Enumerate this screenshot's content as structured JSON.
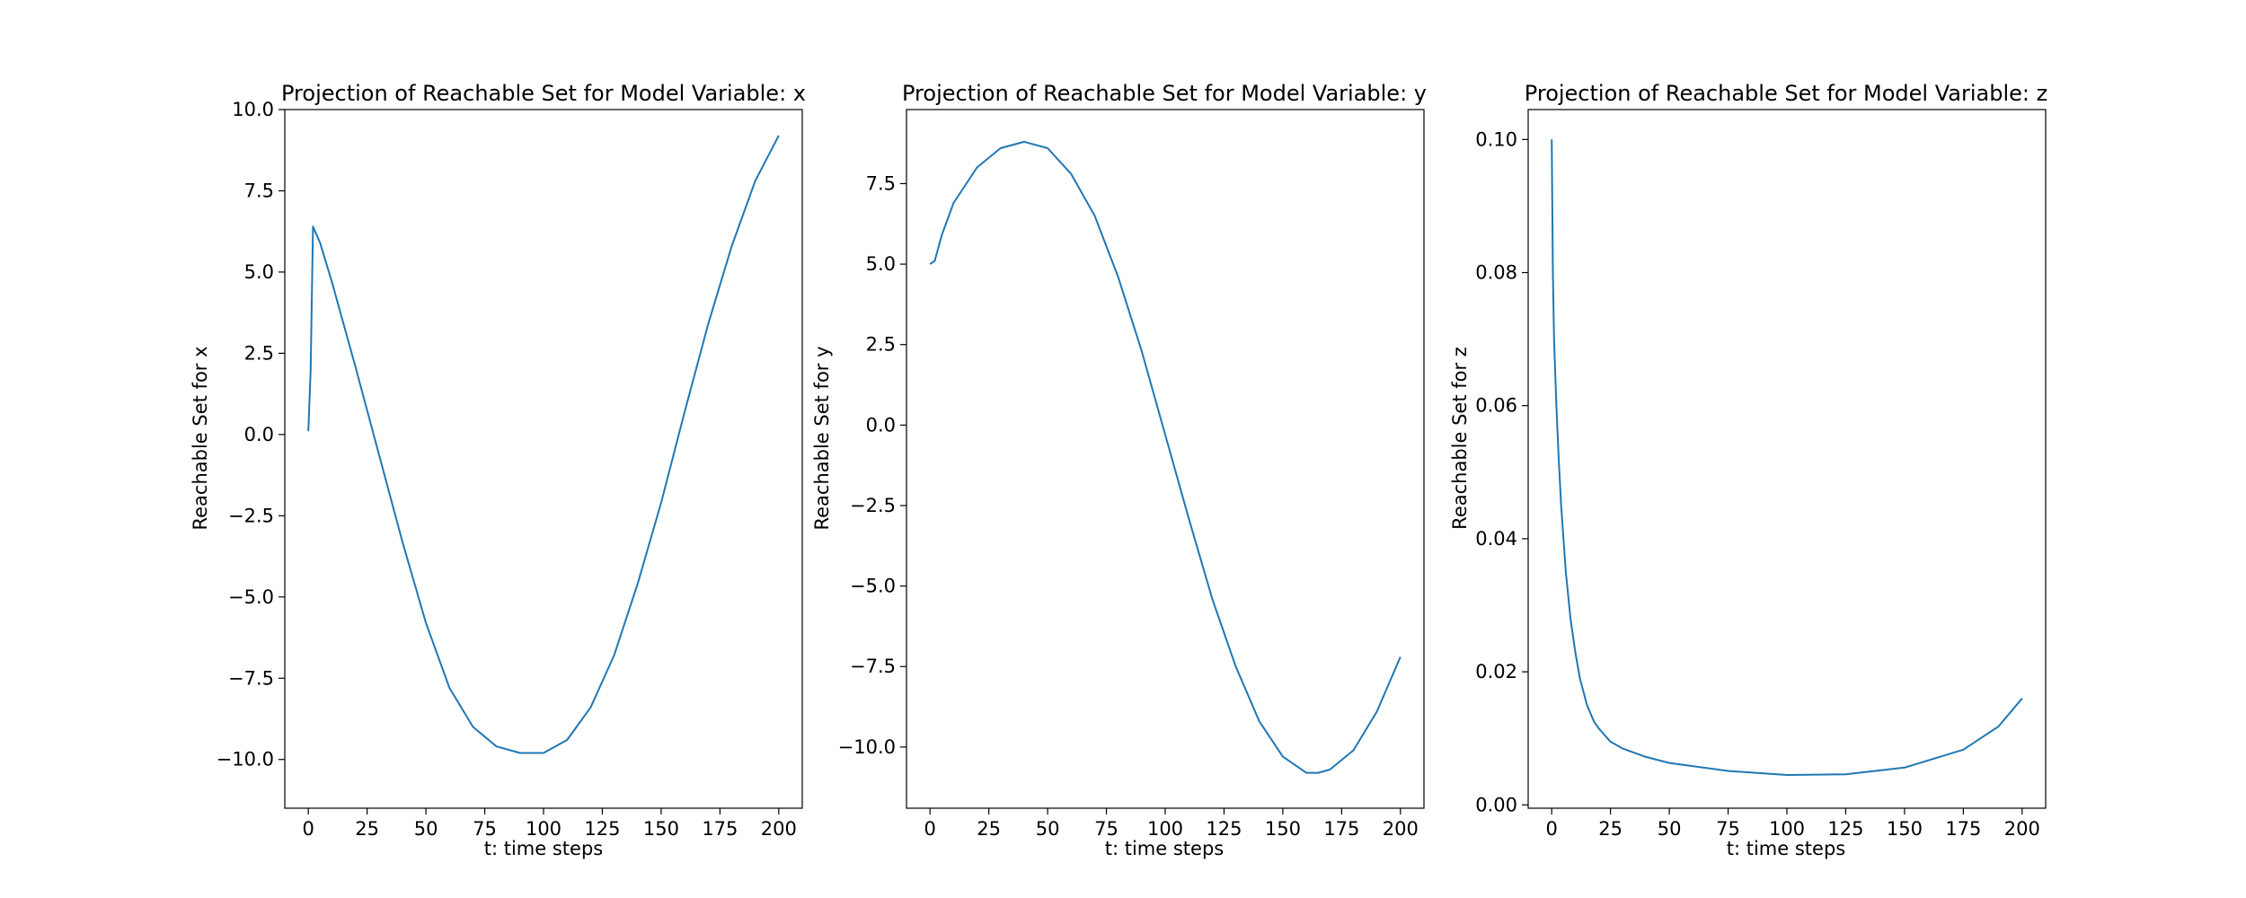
{
  "chart_data": [
    {
      "type": "line",
      "title": "Projection of Reachable Set for Model Variable: x",
      "xlabel": "t: time steps",
      "ylabel": "Reachable Set for x",
      "xlim": [
        -10,
        210
      ],
      "ylim": [
        -11.5,
        10.0
      ],
      "xticks": [
        0,
        25,
        50,
        75,
        100,
        125,
        150,
        175,
        200
      ],
      "xtick_labels": [
        "0",
        "25",
        "50",
        "75",
        "100",
        "125",
        "150",
        "175",
        "200"
      ],
      "yticks": [
        -10.0,
        -7.5,
        -5.0,
        -2.5,
        0.0,
        2.5,
        5.0,
        7.5,
        10.0
      ],
      "ytick_labels": [
        "−10.0",
        "−7.5",
        "−5.0",
        "−2.5",
        "0.0",
        "2.5",
        "5.0",
        "7.5",
        "10.0"
      ],
      "grid": false,
      "color": "#1f77b4",
      "series": [
        {
          "x": [
            0,
            1,
            2,
            5,
            10,
            20,
            30,
            40,
            50,
            60,
            70,
            80,
            90,
            100,
            110,
            120,
            130,
            140,
            150,
            160,
            170,
            180,
            190,
            200
          ],
          "y": [
            0.1,
            2.0,
            6.4,
            5.9,
            4.7,
            2.1,
            -0.6,
            -3.3,
            -5.8,
            -7.8,
            -9.0,
            -9.6,
            -9.8,
            -9.8,
            -9.4,
            -8.4,
            -6.8,
            -4.6,
            -2.1,
            0.7,
            3.4,
            5.8,
            7.8,
            9.2
          ]
        }
      ]
    },
    {
      "type": "line",
      "title": "Projection of Reachable Set for Model Variable: y",
      "xlabel": "t: time steps",
      "ylabel": "Reachable Set for y",
      "xlim": [
        -10,
        210
      ],
      "ylim": [
        -11.9,
        9.8
      ],
      "xticks": [
        0,
        25,
        50,
        75,
        100,
        125,
        150,
        175,
        200
      ],
      "xtick_labels": [
        "0",
        "25",
        "50",
        "75",
        "100",
        "125",
        "150",
        "175",
        "200"
      ],
      "yticks": [
        -10.0,
        -7.5,
        -5.0,
        -2.5,
        0.0,
        2.5,
        5.0,
        7.5
      ],
      "ytick_labels": [
        "−10.0",
        "−7.5",
        "−5.0",
        "−2.5",
        "0.0",
        "2.5",
        "5.0",
        "7.5"
      ],
      "grid": false,
      "color": "#1f77b4",
      "series": [
        {
          "x": [
            0,
            2,
            5,
            10,
            20,
            30,
            40,
            50,
            60,
            70,
            80,
            90,
            100,
            110,
            120,
            130,
            140,
            150,
            160,
            165,
            170,
            180,
            190,
            200
          ],
          "y": [
            5.0,
            5.1,
            5.9,
            6.9,
            8.0,
            8.6,
            8.8,
            8.6,
            7.8,
            6.5,
            4.6,
            2.3,
            -0.3,
            -2.9,
            -5.4,
            -7.5,
            -9.2,
            -10.3,
            -10.8,
            -10.8,
            -10.7,
            -10.1,
            -8.9,
            -7.2
          ]
        }
      ]
    },
    {
      "type": "line",
      "title": "Projection of Reachable Set for Model Variable: z",
      "xlabel": "t: time steps",
      "ylabel": "Reachable Set for z",
      "xlim": [
        -10,
        210
      ],
      "ylim": [
        -0.0005,
        0.1045
      ],
      "xticks": [
        0,
        25,
        50,
        75,
        100,
        125,
        150,
        175,
        200
      ],
      "xtick_labels": [
        "0",
        "25",
        "50",
        "75",
        "100",
        "125",
        "150",
        "175",
        "200"
      ],
      "yticks": [
        0.0,
        0.02,
        0.04,
        0.06,
        0.08,
        0.1
      ],
      "ytick_labels": [
        "0.00",
        "0.02",
        "0.04",
        "0.06",
        "0.08",
        "0.10"
      ],
      "grid": false,
      "color": "#1f77b4",
      "series": [
        {
          "x": [
            0,
            0.5,
            1,
            2,
            3,
            4,
            5,
            6,
            8,
            10,
            12,
            15,
            18,
            20,
            25,
            30,
            40,
            50,
            75,
            100,
            125,
            150,
            175,
            190,
            200
          ],
          "y": [
            0.1,
            0.08,
            0.07,
            0.06,
            0.052,
            0.045,
            0.04,
            0.035,
            0.028,
            0.023,
            0.019,
            0.015,
            0.0125,
            0.0115,
            0.0095,
            0.0085,
            0.0072,
            0.0063,
            0.0051,
            0.0045,
            0.0046,
            0.0056,
            0.0083,
            0.0118,
            0.016
          ]
        }
      ]
    }
  ]
}
